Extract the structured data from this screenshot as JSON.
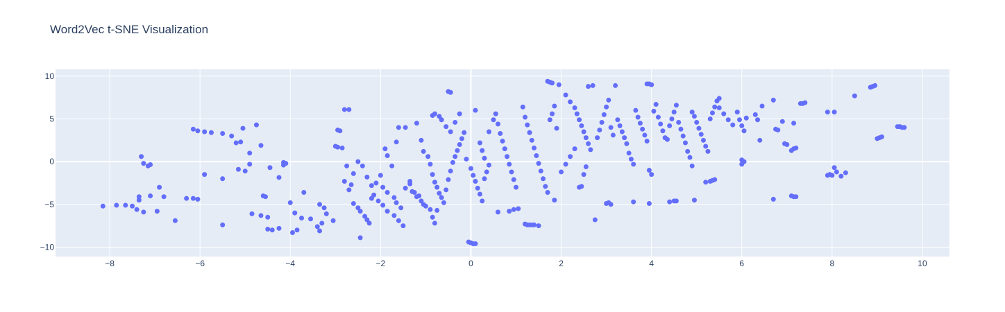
{
  "chart_data": {
    "type": "scatter",
    "title": "Word2Vec t-SNE Visualization",
    "xlabel": "",
    "ylabel": "",
    "xlim": [
      -9.2,
      10.6
    ],
    "ylim": [
      -11.1,
      10.8
    ],
    "x_ticks": [
      -8,
      -6,
      -4,
      -2,
      0,
      2,
      4,
      6,
      8,
      10
    ],
    "y_ticks": [
      10,
      5,
      0,
      -5,
      -10
    ],
    "x_tick_labels": [
      "−8",
      "−6",
      "−4",
      "−2",
      "0",
      "2",
      "4",
      "6",
      "8",
      "10"
    ],
    "y_tick_labels": [
      "10",
      "5",
      "0",
      "−5",
      "−10"
    ],
    "grid": true,
    "marker_color": "#636efa",
    "plot_bg": "#e5ecf6",
    "points": [
      [
        -8.15,
        -5.2
      ],
      [
        -7.85,
        -5.1
      ],
      [
        -7.65,
        -5.1
      ],
      [
        -7.5,
        -5.2
      ],
      [
        -7.35,
        -4.1
      ],
      [
        -7.35,
        -4.5
      ],
      [
        -7.4,
        -5.6
      ],
      [
        -7.25,
        -5.9
      ],
      [
        -7.1,
        -4.0
      ],
      [
        -6.95,
        -5.8
      ],
      [
        -6.9,
        -3.0
      ],
      [
        -6.8,
        -4.1
      ],
      [
        -7.3,
        0.6
      ],
      [
        -7.25,
        -0.2
      ],
      [
        -7.1,
        -0.35
      ],
      [
        -7.15,
        -0.5
      ],
      [
        -6.55,
        -6.9
      ],
      [
        -6.3,
        -4.3
      ],
      [
        -6.15,
        -4.3
      ],
      [
        -6.05,
        -4.4
      ],
      [
        -6.15,
        3.8
      ],
      [
        -6.05,
        3.6
      ],
      [
        -5.9,
        3.5
      ],
      [
        -5.75,
        3.4
      ],
      [
        -5.5,
        3.3
      ],
      [
        -5.3,
        3.0
      ],
      [
        -5.9,
        -1.5
      ],
      [
        -5.5,
        -2.0
      ],
      [
        -5.5,
        -7.4
      ],
      [
        -5.2,
        2.2
      ],
      [
        -5.1,
        2.3
      ],
      [
        -5.0,
        -1.1
      ],
      [
        -5.05,
        3.9
      ],
      [
        -4.9,
        1.0
      ],
      [
        -4.75,
        4.3
      ],
      [
        -4.65,
        1.9
      ],
      [
        -4.6,
        -4.0
      ],
      [
        -4.55,
        -4.1
      ],
      [
        -4.45,
        -0.7
      ],
      [
        -4.25,
        -1.85
      ],
      [
        -4.85,
        -6.1
      ],
      [
        -4.65,
        -6.3
      ],
      [
        -4.5,
        -6.5
      ],
      [
        -4.5,
        -7.9
      ],
      [
        -4.4,
        -8.0
      ],
      [
        -4.25,
        -7.8
      ],
      [
        -4.15,
        -0.1
      ],
      [
        -4.1,
        -0.2
      ],
      [
        -4.15,
        -0.4
      ],
      [
        -4.0,
        -4.8
      ],
      [
        -3.9,
        -6.0
      ],
      [
        -3.75,
        -6.6
      ],
      [
        -3.7,
        -3.6
      ],
      [
        -3.55,
        -6.7
      ],
      [
        -3.4,
        -7.6
      ],
      [
        -3.35,
        -8.1
      ],
      [
        -3.3,
        -7.2
      ],
      [
        -3.25,
        -5.4
      ],
      [
        -3.2,
        -6.1
      ],
      [
        -3.05,
        -6.9
      ],
      [
        -3.0,
        1.8
      ],
      [
        -2.95,
        1.7
      ],
      [
        -2.85,
        1.6
      ],
      [
        -2.8,
        -2.3
      ],
      [
        -2.7,
        -3.3
      ],
      [
        -2.65,
        -2.7
      ],
      [
        -2.6,
        -4.9
      ],
      [
        -2.5,
        -5.4
      ],
      [
        -2.45,
        -5.8
      ],
      [
        -2.35,
        -6.4
      ],
      [
        -2.3,
        -6.8
      ],
      [
        -2.25,
        -7.2
      ],
      [
        -2.2,
        -4.3
      ],
      [
        -2.1,
        -2.5
      ],
      [
        -2.0,
        -1.6
      ],
      [
        -1.95,
        -3.0
      ],
      [
        -1.85,
        -3.6
      ],
      [
        -1.7,
        -4.2
      ],
      [
        -1.65,
        -4.8
      ],
      [
        -1.55,
        -5.4
      ],
      [
        -2.8,
        6.1
      ],
      [
        -2.7,
        6.1
      ],
      [
        -2.75,
        -0.5
      ],
      [
        -2.6,
        -1.4
      ],
      [
        -2.5,
        0.0
      ],
      [
        -2.4,
        -0.5
      ],
      [
        -2.3,
        -1.8
      ],
      [
        -2.2,
        -2.8
      ],
      [
        -2.15,
        -3.9
      ],
      [
        -2.05,
        -4.6
      ],
      [
        -1.95,
        -5.1
      ],
      [
        -1.85,
        -5.8
      ],
      [
        -1.7,
        -6.3
      ],
      [
        -1.6,
        -6.9
      ],
      [
        -1.5,
        -7.5
      ],
      [
        -1.45,
        -3.1
      ],
      [
        -1.35,
        -2.3
      ],
      [
        -1.25,
        -3.6
      ],
      [
        -1.15,
        -4.0
      ],
      [
        -1.05,
        -5.0
      ],
      [
        -2.9,
        3.6
      ],
      [
        -2.95,
        3.7
      ],
      [
        -3.95,
        -8.3
      ],
      [
        -3.85,
        -8.0
      ],
      [
        -2.45,
        -8.9
      ],
      [
        -1.9,
        1.5
      ],
      [
        -1.85,
        0.7
      ],
      [
        -1.75,
        -0.5
      ],
      [
        -1.65,
        2.3
      ],
      [
        -1.6,
        4.0
      ],
      [
        -1.45,
        4.0
      ],
      [
        -1.35,
        -2.6
      ],
      [
        -1.3,
        -3.5
      ],
      [
        -1.2,
        -4.1
      ],
      [
        -1.1,
        -4.6
      ],
      [
        -1.0,
        -5.2
      ],
      [
        -0.9,
        -5.6
      ],
      [
        -0.85,
        -6.5
      ],
      [
        -0.8,
        -7.2
      ],
      [
        -0.75,
        -5.7
      ],
      [
        -1.2,
        4.5
      ],
      [
        -1.1,
        2.5
      ],
      [
        -1.05,
        1.2
      ],
      [
        -0.95,
        0.6
      ],
      [
        -0.9,
        -0.3
      ],
      [
        -0.85,
        -1.5
      ],
      [
        -0.8,
        -2.4
      ],
      [
        -0.75,
        -3.0
      ],
      [
        -0.7,
        -3.7
      ],
      [
        -0.65,
        -4.2
      ],
      [
        -0.6,
        -4.8
      ],
      [
        -0.55,
        -3.3
      ],
      [
        -0.5,
        -2.1
      ],
      [
        -0.45,
        -1.1
      ],
      [
        -0.4,
        -0.1
      ],
      [
        -0.35,
        0.6
      ],
      [
        -0.3,
        1.3
      ],
      [
        -0.25,
        2.0
      ],
      [
        -0.2,
        2.7
      ],
      [
        -0.15,
        3.4
      ],
      [
        -0.5,
        8.2
      ],
      [
        -0.45,
        8.1
      ],
      [
        -0.85,
        5.4
      ],
      [
        -0.8,
        5.6
      ],
      [
        -0.7,
        5.3
      ],
      [
        -0.65,
        4.9
      ],
      [
        -0.55,
        4.1
      ],
      [
        -0.45,
        3.5
      ],
      [
        -0.35,
        4.6
      ],
      [
        -0.25,
        5.6
      ],
      [
        -0.1,
        0.3
      ],
      [
        0.0,
        -0.8
      ],
      [
        0.05,
        -1.6
      ],
      [
        0.1,
        -2.3
      ],
      [
        0.15,
        -3.1
      ],
      [
        0.2,
        -3.8
      ],
      [
        0.25,
        -4.6
      ],
      [
        0.3,
        -2.0
      ],
      [
        0.35,
        -1.2
      ],
      [
        0.4,
        -0.4
      ],
      [
        0.0,
        -9.5
      ],
      [
        0.05,
        -9.6
      ],
      [
        0.1,
        -9.6
      ],
      [
        -0.05,
        -9.4
      ],
      [
        0.1,
        6.0
      ],
      [
        0.2,
        2.2
      ],
      [
        0.25,
        1.3
      ],
      [
        0.3,
        0.4
      ],
      [
        0.4,
        3.5
      ],
      [
        0.5,
        4.9
      ],
      [
        0.55,
        5.6
      ],
      [
        0.6,
        4.4
      ],
      [
        0.65,
        3.3
      ],
      [
        0.7,
        2.4
      ],
      [
        0.75,
        1.5
      ],
      [
        0.8,
        0.6
      ],
      [
        0.85,
        -0.3
      ],
      [
        0.9,
        -1.2
      ],
      [
        0.95,
        -2.1
      ],
      [
        1.0,
        -3.0
      ],
      [
        0.6,
        -5.9
      ],
      [
        0.85,
        -5.8
      ],
      [
        0.95,
        -5.6
      ],
      [
        1.05,
        -5.5
      ],
      [
        1.15,
        6.4
      ],
      [
        1.2,
        5.2
      ],
      [
        1.25,
        4.3
      ],
      [
        1.3,
        3.4
      ],
      [
        1.35,
        2.5
      ],
      [
        1.4,
        1.6
      ],
      [
        1.45,
        0.7
      ],
      [
        1.5,
        -0.2
      ],
      [
        1.55,
        -1.1
      ],
      [
        1.6,
        -2.0
      ],
      [
        1.65,
        -2.9
      ],
      [
        1.7,
        -3.6
      ],
      [
        1.75,
        4.9
      ],
      [
        1.8,
        5.6
      ],
      [
        1.85,
        6.5
      ],
      [
        1.9,
        3.9
      ],
      [
        1.2,
        -7.3
      ],
      [
        1.25,
        -7.4
      ],
      [
        1.3,
        -7.4
      ],
      [
        1.35,
        -7.4
      ],
      [
        1.4,
        -7.4
      ],
      [
        1.5,
        -7.5
      ],
      [
        1.7,
        9.4
      ],
      [
        1.75,
        9.3
      ],
      [
        1.8,
        9.2
      ],
      [
        1.95,
        9.0
      ],
      [
        2.1,
        7.8
      ],
      [
        2.2,
        7.0
      ],
      [
        2.3,
        6.3
      ],
      [
        2.35,
        5.6
      ],
      [
        2.4,
        4.9
      ],
      [
        2.45,
        4.2
      ],
      [
        2.5,
        3.5
      ],
      [
        2.55,
        2.8
      ],
      [
        2.6,
        2.1
      ],
      [
        2.65,
        1.4
      ],
      [
        1.85,
        -4.5
      ],
      [
        2.0,
        -1.2
      ],
      [
        2.1,
        -0.3
      ],
      [
        2.2,
        0.6
      ],
      [
        2.3,
        1.5
      ],
      [
        2.4,
        -3.0
      ],
      [
        2.45,
        -2.9
      ],
      [
        2.5,
        -1.5
      ],
      [
        2.55,
        -0.6
      ],
      [
        2.6,
        8.8
      ],
      [
        2.7,
        8.9
      ],
      [
        2.75,
        -6.8
      ],
      [
        2.8,
        2.8
      ],
      [
        2.85,
        3.7
      ],
      [
        2.9,
        4.6
      ],
      [
        2.95,
        5.5
      ],
      [
        3.0,
        6.4
      ],
      [
        3.05,
        7.2
      ],
      [
        3.1,
        4.0
      ],
      [
        3.15,
        3.1
      ],
      [
        3.0,
        -4.9
      ],
      [
        3.05,
        -4.8
      ],
      [
        3.1,
        -5.0
      ],
      [
        3.2,
        8.9
      ],
      [
        3.25,
        4.9
      ],
      [
        3.3,
        4.2
      ],
      [
        3.35,
        3.5
      ],
      [
        3.4,
        2.8
      ],
      [
        3.45,
        2.1
      ],
      [
        3.5,
        1.0
      ],
      [
        3.55,
        0.3
      ],
      [
        3.6,
        -0.3
      ],
      [
        3.65,
        6.0
      ],
      [
        3.7,
        5.2
      ],
      [
        3.75,
        4.5
      ],
      [
        3.8,
        3.8
      ],
      [
        3.85,
        3.1
      ],
      [
        3.9,
        2.4
      ],
      [
        3.95,
        -1.0
      ],
      [
        4.0,
        -1.5
      ],
      [
        3.9,
        9.1
      ],
      [
        3.95,
        9.1
      ],
      [
        4.0,
        9.0
      ],
      [
        3.6,
        -4.7
      ],
      [
        3.95,
        -4.9
      ],
      [
        4.05,
        5.9
      ],
      [
        4.1,
        6.7
      ],
      [
        4.15,
        5.2
      ],
      [
        4.2,
        4.4
      ],
      [
        4.25,
        3.6
      ],
      [
        4.3,
        2.8
      ],
      [
        4.35,
        2.6
      ],
      [
        4.4,
        4.2
      ],
      [
        4.45,
        5.0
      ],
      [
        4.5,
        5.8
      ],
      [
        4.55,
        6.6
      ],
      [
        4.6,
        4.6
      ],
      [
        4.65,
        3.8
      ],
      [
        4.7,
        3.0
      ],
      [
        4.75,
        2.2
      ],
      [
        4.4,
        -4.7
      ],
      [
        4.5,
        -4.6
      ],
      [
        4.55,
        -4.6
      ],
      [
        4.8,
        1.2
      ],
      [
        4.85,
        0.5
      ],
      [
        4.9,
        -0.5
      ],
      [
        4.95,
        -4.5
      ],
      [
        4.9,
        5.8
      ],
      [
        4.95,
        5.3
      ],
      [
        5.0,
        4.6
      ],
      [
        5.05,
        3.9
      ],
      [
        5.1,
        3.2
      ],
      [
        5.15,
        2.5
      ],
      [
        5.2,
        1.8
      ],
      [
        5.25,
        1.2
      ],
      [
        5.3,
        5.0
      ],
      [
        5.35,
        5.7
      ],
      [
        5.4,
        6.4
      ],
      [
        5.45,
        7.1
      ],
      [
        5.5,
        7.4
      ],
      [
        5.2,
        -2.4
      ],
      [
        5.3,
        -2.3
      ],
      [
        5.35,
        -2.2
      ],
      [
        5.4,
        -2.1
      ],
      [
        5.5,
        6.3
      ],
      [
        5.6,
        5.6
      ],
      [
        5.7,
        4.9
      ],
      [
        5.8,
        4.3
      ],
      [
        5.9,
        5.8
      ],
      [
        5.95,
        4.9
      ],
      [
        6.0,
        4.2
      ],
      [
        6.05,
        3.6
      ],
      [
        6.1,
        5.1
      ],
      [
        6.0,
        0.2
      ],
      [
        6.05,
        0.0
      ],
      [
        6.0,
        -0.3
      ],
      [
        6.3,
        5.5
      ],
      [
        6.35,
        4.9
      ],
      [
        6.4,
        2.5
      ],
      [
        6.45,
        6.5
      ],
      [
        6.7,
        7.2
      ],
      [
        6.75,
        3.8
      ],
      [
        6.8,
        3.7
      ],
      [
        6.9,
        4.7
      ],
      [
        6.95,
        2.1
      ],
      [
        7.0,
        2.0
      ],
      [
        6.7,
        -4.4
      ],
      [
        7.1,
        -4.0
      ],
      [
        7.15,
        -4.1
      ],
      [
        7.2,
        -4.1
      ],
      [
        7.15,
        4.5
      ],
      [
        7.1,
        1.3
      ],
      [
        7.15,
        1.5
      ],
      [
        7.2,
        1.6
      ],
      [
        7.3,
        6.8
      ],
      [
        7.35,
        6.8
      ],
      [
        7.4,
        6.9
      ],
      [
        7.9,
        5.8
      ],
      [
        8.05,
        5.8
      ],
      [
        7.95,
        -1.5
      ],
      [
        7.9,
        -1.6
      ],
      [
        8.0,
        -1.6
      ],
      [
        8.05,
        -0.7
      ],
      [
        8.1,
        -1.2
      ],
      [
        8.2,
        -1.7
      ],
      [
        8.3,
        -1.3
      ],
      [
        8.5,
        7.7
      ],
      [
        8.85,
        8.7
      ],
      [
        8.9,
        8.8
      ],
      [
        8.95,
        8.9
      ],
      [
        9.0,
        2.7
      ],
      [
        9.05,
        2.8
      ],
      [
        9.1,
        2.9
      ],
      [
        9.5,
        4.1
      ],
      [
        9.55,
        4.0
      ],
      [
        9.6,
        4.0
      ],
      [
        9.45,
        4.1
      ],
      [
        -5.15,
        -0.9
      ],
      [
        -4.9,
        -0.3
      ],
      [
        -3.35,
        -5.0
      ]
    ]
  }
}
